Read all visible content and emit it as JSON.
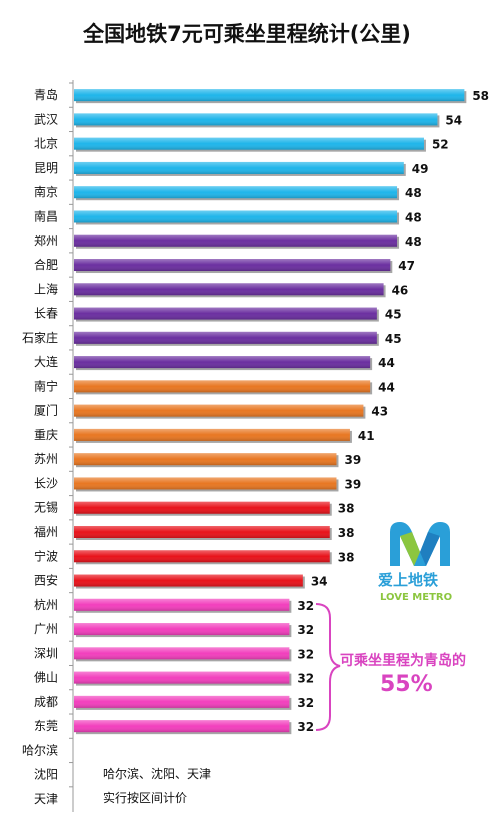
{
  "chart_data": {
    "type": "bar",
    "orientation": "horizontal",
    "title": "全国地铁7元可乘坐里程统计(公里)",
    "categories": [
      "青岛",
      "武汉",
      "北京",
      "昆明",
      "南京",
      "南昌",
      "郑州",
      "合肥",
      "上海",
      "长春",
      "石家庄",
      "大连",
      "南宁",
      "厦门",
      "重庆",
      "苏州",
      "长沙",
      "无锡",
      "福州",
      "宁波",
      "西安",
      "杭州",
      "广州",
      "深圳",
      "佛山",
      "成都",
      "东莞",
      "哈尔滨",
      "沈阳",
      "天津"
    ],
    "values": [
      58,
      54,
      52,
      49,
      48,
      48,
      48,
      47,
      46,
      45,
      45,
      44,
      44,
      43,
      41,
      39,
      39,
      38,
      38,
      38,
      34,
      32,
      32,
      32,
      32,
      32,
      32,
      null,
      null,
      null
    ],
    "value_labels": [
      "58",
      "54",
      "52",
      "49",
      "48",
      "48",
      "48",
      "47",
      "46",
      "45",
      "45",
      "44",
      "44",
      "43",
      "41",
      "39",
      "39",
      "38",
      "38",
      "38",
      "34",
      "32",
      "32",
      "32",
      "32",
      "32",
      "32",
      "",
      "",
      ""
    ],
    "bar_colors": [
      "#1fb5ea",
      "#1fb5ea",
      "#1fb5ea",
      "#1fb5ea",
      "#1fb5ea",
      "#1fb5ea",
      "#6b2fa0",
      "#6b2fa0",
      "#6b2fa0",
      "#6b2fa0",
      "#6b2fa0",
      "#6b2fa0",
      "#e87722",
      "#e87722",
      "#e87722",
      "#e87722",
      "#e87722",
      "#e8131b",
      "#e8131b",
      "#e8131b",
      "#e8131b",
      "#f23fbd",
      "#f23fbd",
      "#f23fbd",
      "#f23fbd",
      "#f23fbd",
      "#f23fbd",
      "",
      "",
      ""
    ],
    "xlim": [
      0,
      60
    ],
    "grid": false,
    "legend": "none"
  },
  "annotations": {
    "callout_text": "可乘坐里程为青岛的",
    "callout_percent": "55%",
    "note_line1": "哈尔滨、沈阳、天津",
    "note_line2": "实行按区间计价",
    "logo_text": "爱上地铁",
    "logo_sub": "LOVE METRO"
  },
  "colors": {
    "accent_callout": "#d944c0",
    "logo_blue": "#2a9fd8",
    "logo_green": "#8cc63f"
  }
}
